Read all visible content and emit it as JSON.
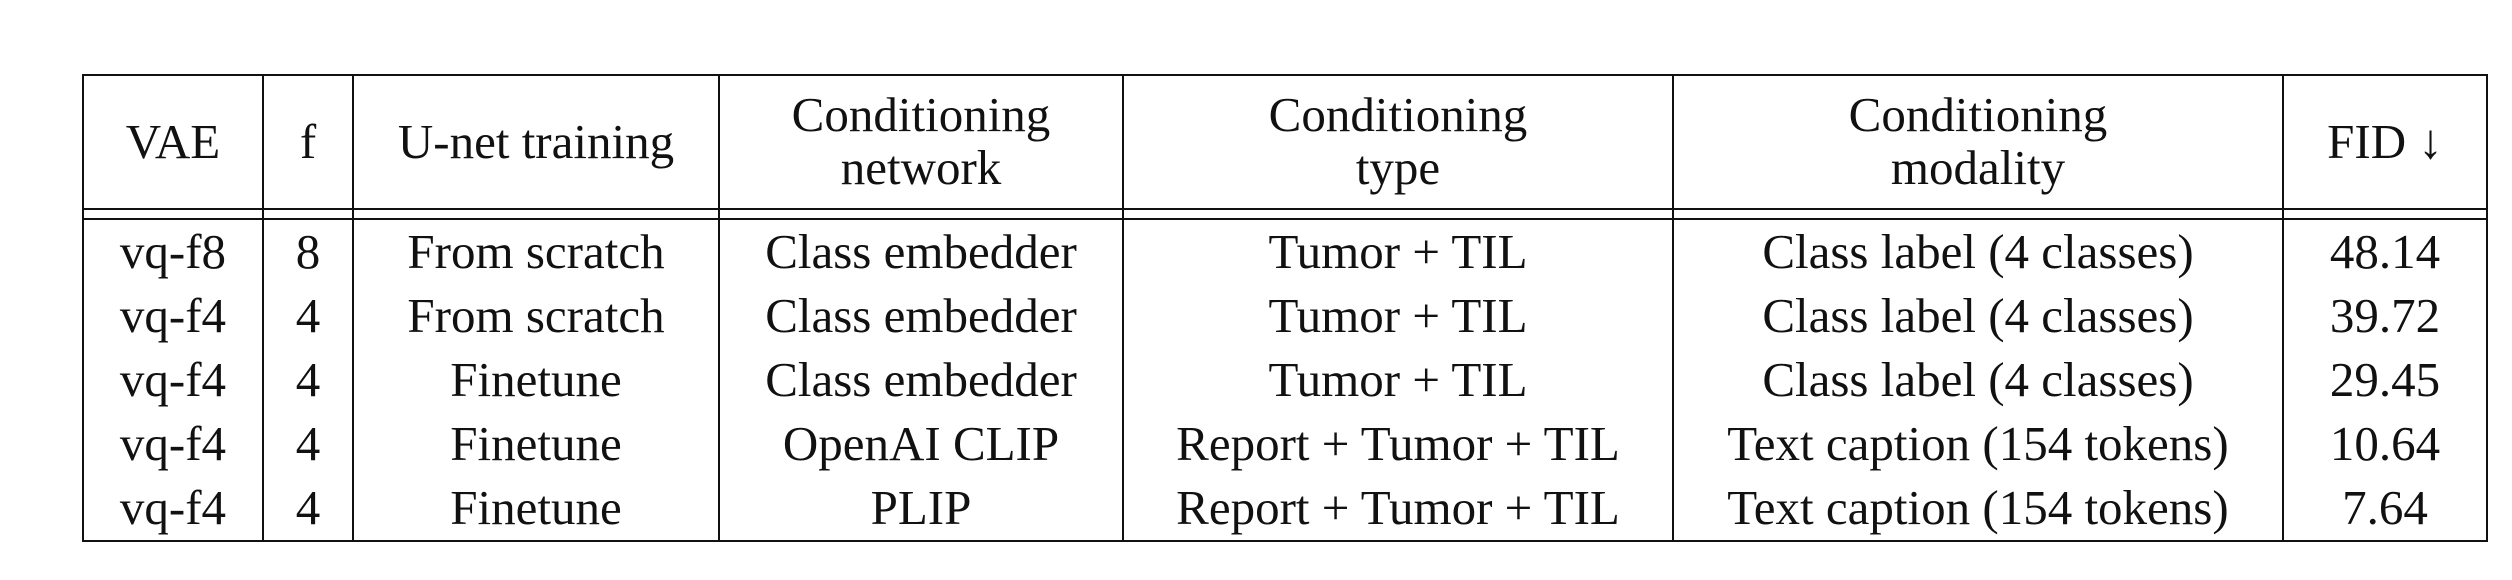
{
  "table": {
    "columns": [
      {
        "lines": [
          "VAE"
        ]
      },
      {
        "lines": [
          "f"
        ]
      },
      {
        "lines": [
          "U-net training"
        ]
      },
      {
        "lines": [
          "Conditioning",
          "network"
        ]
      },
      {
        "lines": [
          "Conditioning",
          "type"
        ]
      },
      {
        "lines": [
          "Conditioning",
          "modality"
        ]
      },
      {
        "lines": [
          "FID ↓"
        ]
      }
    ],
    "rows": [
      {
        "cells": [
          "vq-f8",
          "8",
          "From scratch",
          "Class embedder",
          "Tumor + TIL",
          "Class label (4 classes)",
          "48.14"
        ],
        "bold_last": false
      },
      {
        "cells": [
          "vq-f4",
          "4",
          "From scratch",
          "Class embedder",
          "Tumor + TIL",
          "Class label (4 classes)",
          "39.72"
        ],
        "bold_last": false
      },
      {
        "cells": [
          "vq-f4",
          "4",
          "Finetune",
          "Class embedder",
          "Tumor + TIL",
          "Class label (4 classes)",
          "29.45"
        ],
        "bold_last": false
      },
      {
        "cells": [
          "vq-f4",
          "4",
          "Finetune",
          "OpenAI CLIP",
          "Report + Tumor + TIL",
          "Text caption (154 tokens)",
          "10.64"
        ],
        "bold_last": false
      },
      {
        "cells": [
          "vq-f4",
          "4",
          "Finetune",
          "PLIP",
          "Report + Tumor + TIL",
          "Text caption (154 tokens)",
          "7.64"
        ],
        "bold_last": true
      }
    ]
  }
}
